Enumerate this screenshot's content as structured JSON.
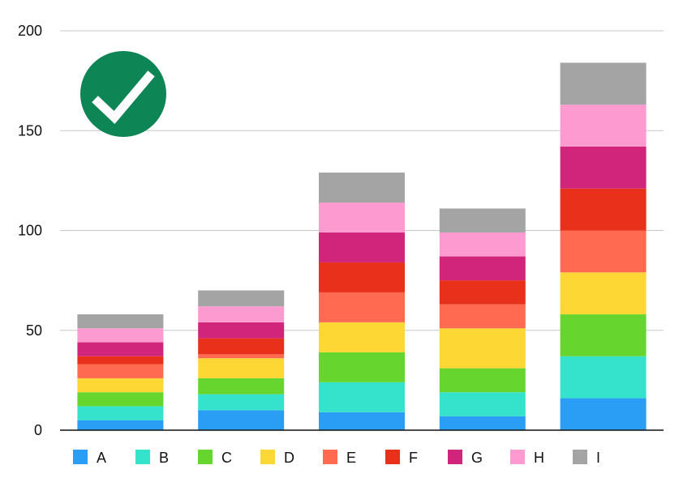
{
  "chart_data": {
    "type": "bar",
    "stacked": true,
    "categories": [
      "",
      "",
      "",
      "",
      ""
    ],
    "series": [
      {
        "name": "A",
        "color": "#2a9df4",
        "values": [
          5,
          10,
          9,
          7,
          16
        ]
      },
      {
        "name": "B",
        "color": "#35e3cc",
        "values": [
          7,
          8,
          15,
          12,
          21
        ]
      },
      {
        "name": "C",
        "color": "#66d62e",
        "values": [
          7,
          8,
          15,
          12,
          21
        ]
      },
      {
        "name": "D",
        "color": "#fdd835",
        "values": [
          7,
          10,
          15,
          20,
          21
        ]
      },
      {
        "name": "E",
        "color": "#ff6a50",
        "values": [
          7,
          2,
          15,
          12,
          21
        ]
      },
      {
        "name": "F",
        "color": "#e8301a",
        "values": [
          4,
          8,
          15,
          12,
          21
        ]
      },
      {
        "name": "G",
        "color": "#d0257a",
        "values": [
          7,
          8,
          15,
          12,
          21
        ]
      },
      {
        "name": "H",
        "color": "#fd9bd0",
        "values": [
          7,
          8,
          15,
          12,
          21
        ]
      },
      {
        "name": "I",
        "color": "#a4a4a4",
        "values": [
          7,
          8,
          15,
          12,
          21
        ]
      }
    ],
    "yticks": [
      0,
      50,
      100,
      150,
      200
    ],
    "ylim": [
      0,
      200
    ],
    "grid": true,
    "legend": "bottom"
  },
  "badge": {
    "icon": "check-icon",
    "color": "#0e8554"
  }
}
